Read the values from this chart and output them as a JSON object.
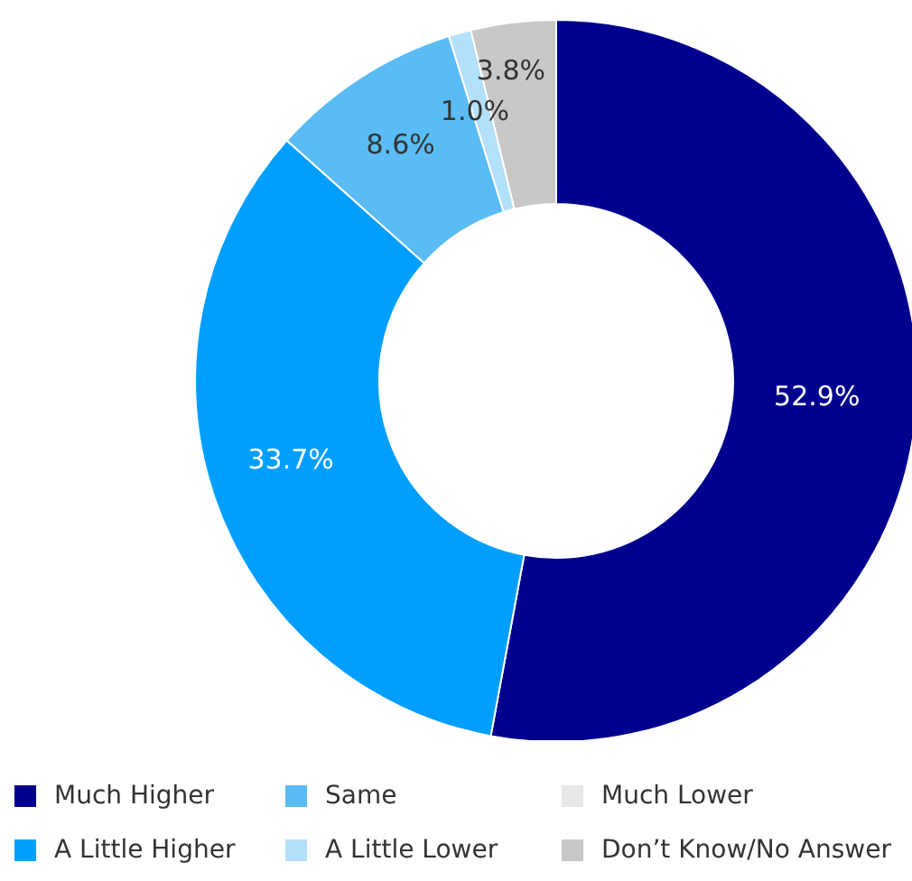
{
  "chart_data": {
    "type": "donut",
    "categories": [
      "Much Higher",
      "A Little Higher",
      "Same",
      "A Little Lower",
      "Much Lower",
      "Don’t Know/No Answer"
    ],
    "values": [
      52.9,
      33.7,
      8.6,
      1.0,
      0,
      3.8
    ],
    "colors": [
      "#00008f",
      "#009fff",
      "#5bbcf5",
      "#b3e0fa",
      "#e8e8e8",
      "#c8c8c8"
    ],
    "value_labels": [
      "52.9%",
      "33.7%",
      "8.6%",
      "1.0%",
      null,
      "3.8%"
    ],
    "legend": "bottom"
  }
}
